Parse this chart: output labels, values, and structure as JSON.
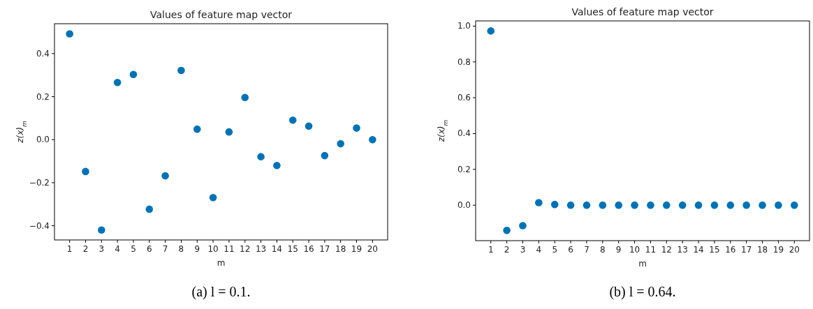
{
  "chart_data": [
    {
      "type": "scatter",
      "title": "Values of feature map vector",
      "xlabel": "m",
      "ylabel": "z(x)$_{m}$",
      "marker": "circle",
      "grid": false,
      "x": [
        1,
        2,
        3,
        4,
        5,
        6,
        7,
        8,
        9,
        10,
        11,
        12,
        13,
        14,
        15,
        16,
        17,
        18,
        19,
        20
      ],
      "series": [
        {
          "color": "#0072b2",
          "values": [
            0.492,
            -0.148,
            -0.42,
            0.266,
            0.303,
            -0.323,
            -0.168,
            0.322,
            0.049,
            -0.269,
            0.036,
            0.196,
            -0.079,
            -0.12,
            0.091,
            0.063,
            -0.074,
            -0.019,
            0.054,
            0.0
          ]
        }
      ],
      "xlim": [
        0.05,
        20.95
      ],
      "xticks": [
        1,
        2,
        3,
        4,
        5,
        6,
        7,
        8,
        9,
        10,
        11,
        12,
        13,
        14,
        15,
        16,
        17,
        18,
        19,
        20
      ],
      "ylim": [
        -0.466,
        0.539
      ],
      "yticks": [
        {
          "value": -0.4,
          "label": "−0.4"
        },
        {
          "value": -0.2,
          "label": "−0.2"
        },
        {
          "value": 0,
          "label": "0.0"
        },
        0.2,
        0.4
      ],
      "annotations": [
        "(a) l = 0.1."
      ]
    },
    {
      "type": "scatter",
      "title": "Values of feature map vector",
      "xlabel": "m",
      "ylabel": "z(x)$_{m}$",
      "marker": "circle",
      "grid": false,
      "x": [
        1,
        2,
        3,
        4,
        5,
        6,
        7,
        8,
        9,
        10,
        11,
        12,
        13,
        14,
        15,
        16,
        17,
        18,
        19,
        20
      ],
      "series": [
        {
          "color": "#0072b2",
          "values": [
            0.973,
            -0.141,
            -0.114,
            0.014,
            0.004,
            0,
            0,
            0,
            0,
            0,
            0,
            0,
            0,
            0,
            0,
            0,
            0,
            0,
            0,
            0
          ]
        }
      ],
      "xlim": [
        0.05,
        20.95
      ],
      "xticks": [
        1,
        2,
        3,
        4,
        5,
        6,
        7,
        8,
        9,
        10,
        11,
        12,
        13,
        14,
        15,
        16,
        17,
        18,
        19,
        20
      ],
      "ylim": [
        -0.198,
        1.029
      ],
      "yticks": [
        {
          "value": 0,
          "label": "0.0"
        },
        0.2,
        0.4,
        0.6,
        0.8,
        {
          "value": 1,
          "label": "1.0"
        }
      ],
      "annotations": [
        "(b) l = 0.64."
      ]
    }
  ]
}
